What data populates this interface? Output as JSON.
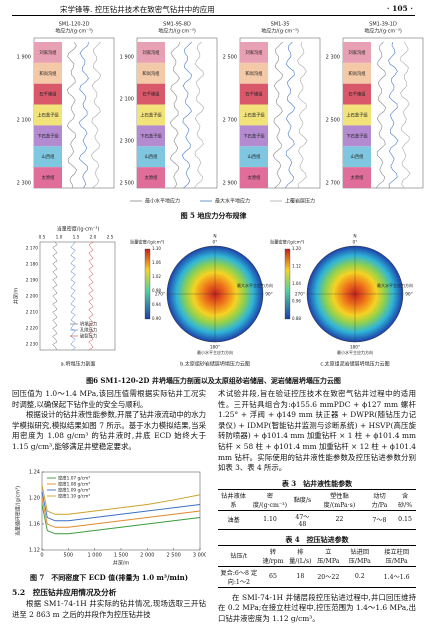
{
  "header": {
    "running_title": "宋学锋等. 控压钻井技术在致密气钻井中的应用",
    "page_number": "· 105 ·"
  },
  "figure5": {
    "panels": [
      {
        "well": "SM1-120-2D",
        "depths": [
          "1 900",
          "2 100",
          "2 300"
        ]
      },
      {
        "well": "SM1-95-8D",
        "depths": [
          "1 900",
          "2 100",
          "2 300",
          "2 500"
        ]
      },
      {
        "well": "SM1-35",
        "depths": [
          "2 500",
          "2 700",
          "2 900"
        ]
      },
      {
        "well": "SM1-39-1D",
        "depths": [
          "2 300",
          "2 500",
          "2 700"
        ]
      }
    ],
    "axis_label": "地应力/(g·cm⁻³)",
    "layers": [
      "刘家沟组",
      "和尚沟组",
      "石千峰组",
      "上石盒子组",
      "下石盒子组",
      "山西组",
      "太原组"
    ],
    "legend": [
      "最小水平地应力",
      "最大水平地应力",
      "上覆岩层压力"
    ],
    "caption": "图 5 地应力分布规律"
  },
  "figure6": {
    "a": {
      "axis_label": "当量密度/(g·cm⁻³)",
      "ticks": [
        "0.5",
        "1.0",
        "1.5",
        "2.0",
        "2.5"
      ],
      "depth_label": "井深/m",
      "depths": [
        "2 170",
        "2 180",
        "2 190",
        "2 200",
        "2 210",
        "2 220",
        "2 230"
      ],
      "legend": [
        "坍塌压力",
        "孔隙压力",
        "破裂压力"
      ],
      "caption": "a.坍塌压力剖面"
    },
    "b": {
      "colorbar_label": "当量密度/(g/cm³)",
      "colorbar_ticks": [
        "1.10",
        "1.06",
        "1.02",
        "0.98",
        "0.94",
        "0.90"
      ],
      "compass": [
        "N",
        "0°",
        "90°",
        "180°",
        "270°"
      ],
      "max_label": "最大水平主应力方向",
      "min_label": "最小水平主应力方向",
      "caption": "b.太原组砂岩储层坍塌压力云图"
    },
    "c": {
      "colorbar_label": "当量密度/(g/cm³)",
      "colorbar_ticks": [
        "1.20",
        "1.12",
        "1.04",
        "0.96",
        "0.88"
      ],
      "compass": [
        "N",
        "0°",
        "90°",
        "180°",
        "270°"
      ],
      "max_label": "最大水平主应力方向",
      "min_label": "最小水平主应力方向",
      "caption": "c.太原组泥岩储层坍塌压力云图"
    },
    "caption": "图6 SM1-120-2D 井坍塌压力剖面以及太原组砂岩储层、泥岩储层坍塌压力云图"
  },
  "body": {
    "left_1": "回压值为 1.0～1.4 MPa,该回压值需根据实际钻井工况实时调整,以确保起下钻作业的安全与顺利。",
    "left_2": "根据设计的钻井液性能参数,开展了钻井液流动中的水力学模拟研究,模拟结果如图 7 所示。基于水力模拟结果,当采用密度为 1.08 g/cm³ 的钻井液时,井底 ECD 始终大于 1.15 g/cm³,能够满足井壁稳定要求。",
    "section": "5.2　控压钻井应用情况及分析",
    "left_3": "根据 SM1-74-1H 井实际的钻井情况,现场选取三开钻进至 2 863 m 之后的井段作为控压钻井技",
    "right_1": "术试验井段,旨在验证控压技术在致密气钻井过程中的适用性。三开钻具组合为:ϕ155.6 mmPDC + ϕ127 mm 螺杆 1.25° + 浮阀 + ϕ149 mm 扶正器 + DWPR(随钻压力记录仪) + IDMP(智能钻井监测与诊断系统) + HSVP(高压旋转防喷器) + ϕ101.4 mm 加重钻杆 × 1 柱 + ϕ101.4 mm 钻杆 × 58 柱 + ϕ101.4 mm 加重钻杆 × 12 柱 + ϕ101.4 mm 钻杆。实际使用的钻井液性能参数及控压钻进参数分别如表 3、表 4 所示。",
    "right_2": "在 SMI-74-1H 井储层段控压钻进过程中,井口回压维持在 0.2 MPa;在接立柱过程中,控压范围为 1.4～1.6 MPa,出口钻井液密度为 1.12 g/cm³。"
  },
  "table3": {
    "title": "表 3　钻井液性能参数",
    "headers": [
      "钻井液体系",
      "密度/(g·cm⁻³)",
      "黏度/s",
      "塑性黏度/(mPa·s)",
      "动切力/Pa",
      "含砂/%"
    ],
    "rows": [
      [
        "油基",
        "1.10",
        "47～48",
        "22",
        "7～8",
        "0.15"
      ]
    ]
  },
  "table4": {
    "title": "表 4　控压钻进参数",
    "headers": [
      "钻压/t",
      "转速/rpm",
      "排量/(L/s)",
      "立压/MPa",
      "钻进回压/MPa",
      "接立柱回压/MPa"
    ],
    "rows": [
      [
        "复合:6～8 定向:1～2",
        "65",
        "18",
        "20～22",
        "0.2",
        "1.4～1.6"
      ]
    ]
  },
  "figure7": {
    "type": "line",
    "caption": "图 7　不同密度下 ECD 值(排量为 1.0 m³/min)",
    "x_label": "井深/m",
    "y_label": "当量循环密度/(g/cm³)",
    "x": [
      0,
      100,
      250,
      500,
      1000,
      1500,
      2000,
      2500,
      3000
    ],
    "series": [
      {
        "name": "密度1.07 g/cm³",
        "color": "#3a9a3a",
        "values": [
          1.19,
          1.15,
          1.145,
          1.145,
          1.15,
          1.155,
          1.16,
          1.165,
          1.17
        ]
      },
      {
        "name": "密度1.08 g/cm³",
        "color": "#e08a2a",
        "values": [
          1.2,
          1.16,
          1.155,
          1.155,
          1.16,
          1.165,
          1.17,
          1.175,
          1.18
        ]
      },
      {
        "name": "密度1.09 g/cm³",
        "color": "#3a6fc4",
        "values": [
          1.21,
          1.17,
          1.165,
          1.165,
          1.17,
          1.175,
          1.18,
          1.185,
          1.19
        ]
      },
      {
        "name": "密度1.10 g/cm³",
        "color": "#c9a227",
        "values": [
          1.22,
          1.18,
          1.175,
          1.175,
          1.18,
          1.185,
          1.19,
          1.197,
          1.205
        ]
      }
    ],
    "xlim": [
      0,
      3000
    ],
    "xticks": [
      0,
      500,
      {
        "value": 1000,
        "label": "1 000"
      },
      {
        "value": 1500,
        "label": "1 500"
      },
      {
        "value": 2000,
        "label": "2 000"
      },
      {
        "value": 2500,
        "label": "2 500"
      },
      {
        "value": 3000,
        "label": "3 000"
      }
    ],
    "ylim": [
      1.12,
      1.24
    ],
    "yticks": [
      1.12,
      1.16,
      {
        "value": 1.2,
        "label": "1.20"
      },
      1.24
    ]
  }
}
